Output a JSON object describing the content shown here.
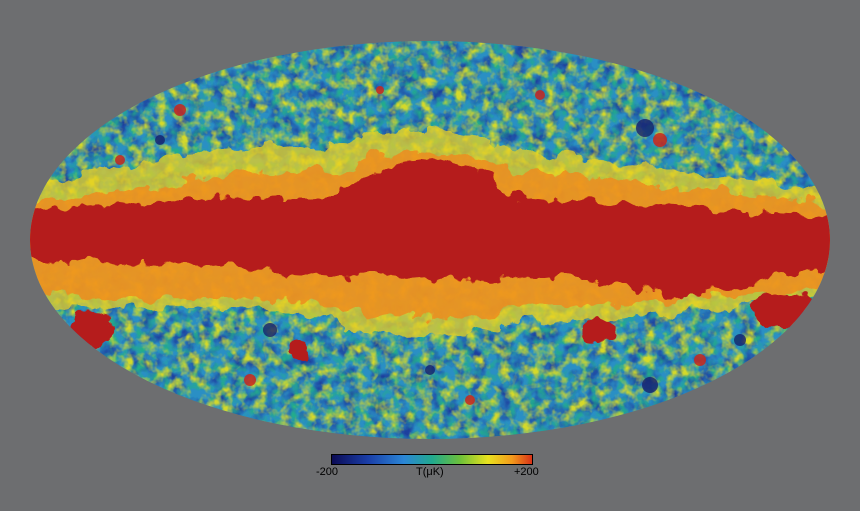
{
  "map": {
    "projection": "mollweide",
    "palette": [
      "#1a1170",
      "#1c3fa0",
      "#2a7ad0",
      "#1fa6b0",
      "#24b07a",
      "#79c43a",
      "#e7e21f",
      "#f4a11d",
      "#e0501a",
      "#b51c1c"
    ]
  },
  "colorbar": {
    "min_label": "-200",
    "unit_label": "T(μK)",
    "max_label": "+200",
    "min": -200,
    "max": 200
  }
}
